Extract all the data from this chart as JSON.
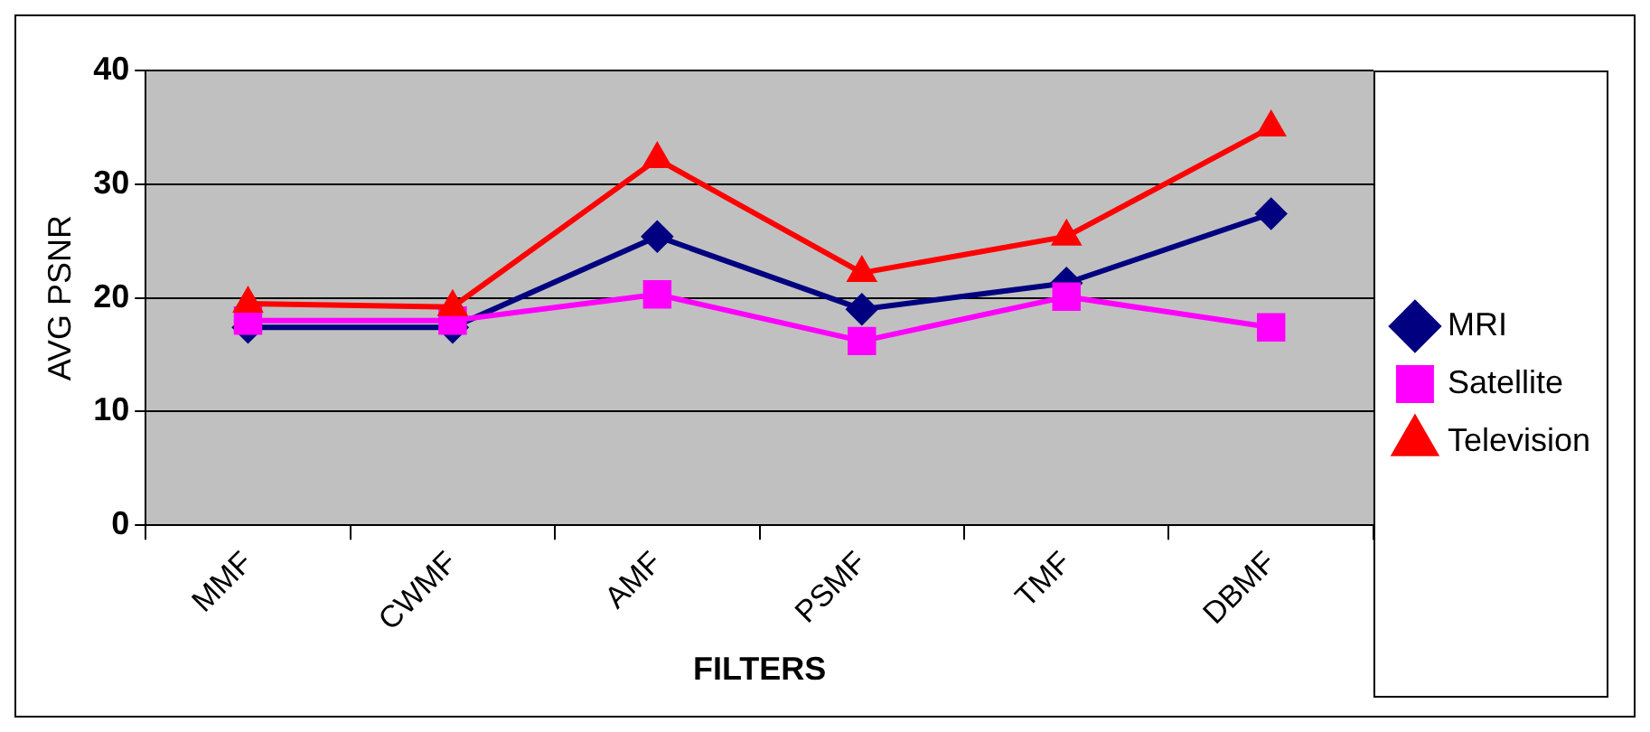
{
  "chart_data": {
    "type": "line",
    "xlabel": "FILTERS",
    "ylabel": "AVG PSNR",
    "categories": [
      "MMF",
      "CWMF",
      "AMF",
      "PSMF",
      "TMF",
      "DBMF"
    ],
    "series": [
      {
        "name": "MRI",
        "color": "#000080",
        "marker": "diamond",
        "values": [
          17.4,
          17.4,
          25.4,
          19,
          21.3,
          27.4
        ]
      },
      {
        "name": "Satellite",
        "color": "#ff00ff",
        "marker": "square",
        "values": [
          18,
          18,
          20.3,
          16.2,
          20.1,
          17.4
        ]
      },
      {
        "name": "Television",
        "color": "#ff0000",
        "marker": "triangle",
        "values": [
          19.5,
          19.2,
          32.2,
          22.2,
          25.4,
          35
        ]
      }
    ],
    "ylim": [
      0,
      40
    ],
    "yticks": [
      0,
      10,
      20,
      30,
      40
    ],
    "grid": "y",
    "legend": "right",
    "line_style": "solid"
  }
}
